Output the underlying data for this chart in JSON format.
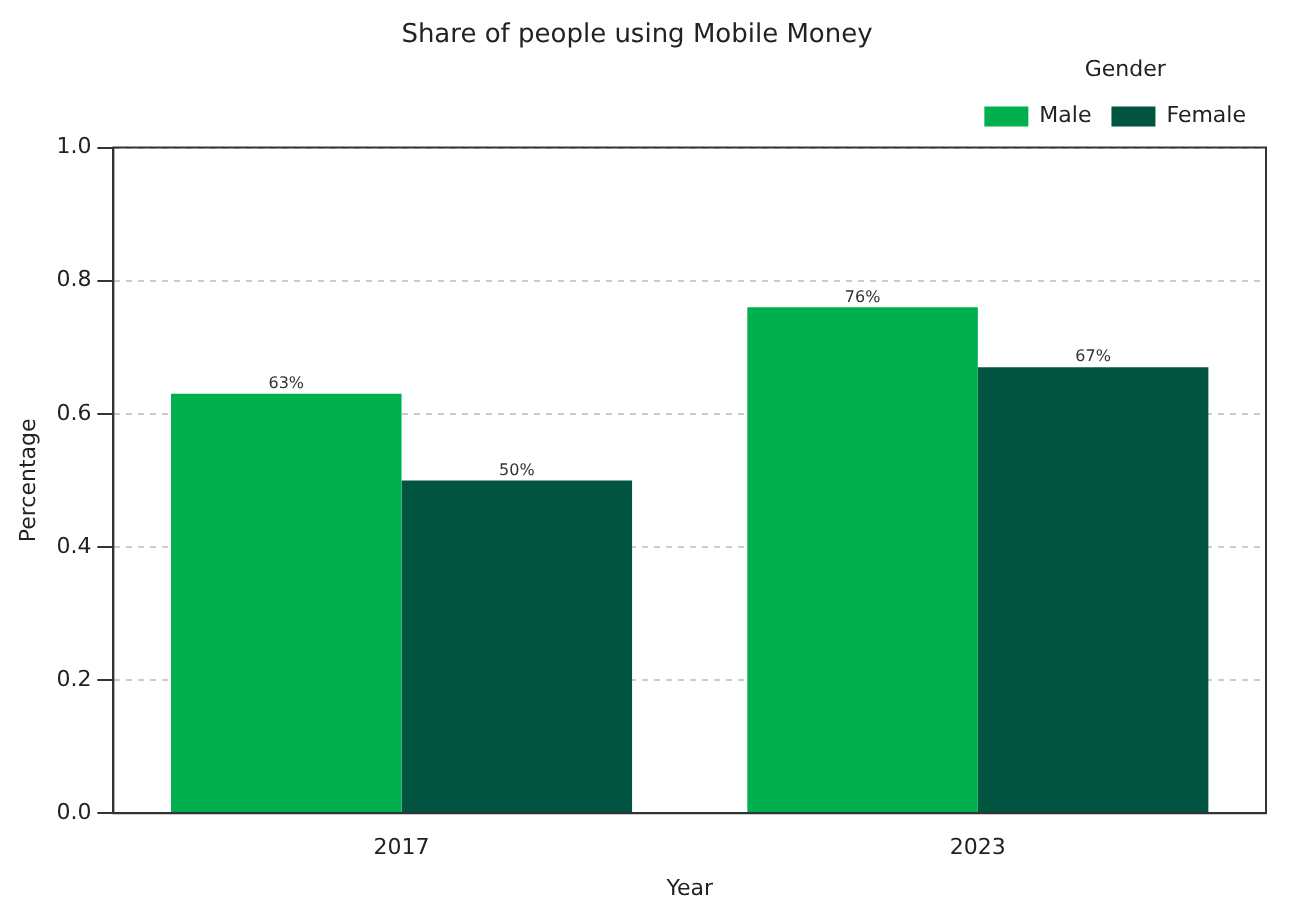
{
  "chart_data": {
    "type": "bar",
    "title": "Share of people using Mobile Money",
    "xlabel": "Year",
    "ylabel": "Percentage",
    "legend_title": "Gender",
    "categories": [
      "2017",
      "2023"
    ],
    "series": [
      {
        "name": "Male",
        "color": "#00b04f",
        "values": [
          0.63,
          0.76
        ],
        "value_labels": [
          "63%",
          "76%"
        ]
      },
      {
        "name": "Female",
        "color": "#005440",
        "values": [
          0.5,
          0.67
        ],
        "value_labels": [
          "50%",
          "67%"
        ]
      }
    ],
    "ylim": [
      0,
      1
    ],
    "yticks": [
      {
        "value": 0,
        "label": "0.0"
      },
      0.2,
      0.4,
      0.6,
      0.8,
      {
        "value": 1,
        "label": "1.0"
      }
    ],
    "grid": "y",
    "line_style": "dashed",
    "legend": "top right"
  }
}
